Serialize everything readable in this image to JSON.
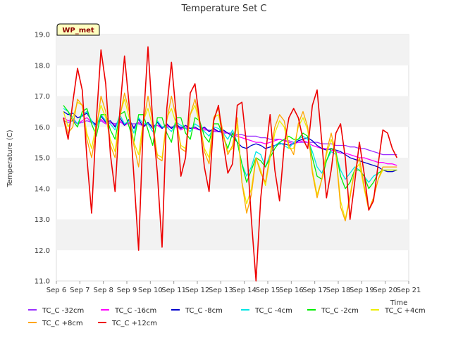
{
  "chart_data": {
    "type": "line",
    "title": "Temperature Set C",
    "xlabel": "Time",
    "ylabel": "Temperature (C)",
    "ylim": [
      11.0,
      19.0
    ],
    "xlim": [
      "Sep 6",
      "Sep 21"
    ],
    "x_ticks": [
      "Sep 6",
      "Sep 7",
      "Sep 8",
      "Sep 9",
      "Sep 10",
      "Sep 11",
      "Sep 12",
      "Sep 13",
      "Sep 14",
      "Sep 15",
      "Sep 16",
      "Sep 17",
      "Sep 18",
      "Sep 19",
      "Sep 20",
      "Sep 21"
    ],
    "y_ticks": [
      11.0,
      12.0,
      13.0,
      14.0,
      15.0,
      16.0,
      17.0,
      18.0,
      19.0
    ],
    "grid": "horizontal bands",
    "legend_placement": "bottom",
    "badge": "WP_met",
    "x_days": [
      0.3,
      0.5,
      0.7,
      0.9,
      1.1,
      1.3,
      1.5,
      1.7,
      1.9,
      2.1,
      2.3,
      2.5,
      2.7,
      2.9,
      3.1,
      3.3,
      3.5,
      3.7,
      3.9,
      4.1,
      4.3,
      4.5,
      4.7,
      4.9,
      5.1,
      5.3,
      5.5,
      5.7,
      5.9,
      6.1,
      6.3,
      6.5,
      6.7,
      6.9,
      7.1,
      7.3,
      7.5,
      7.7,
      7.9,
      8.1,
      8.3,
      8.5,
      8.7,
      8.9,
      9.1,
      9.3,
      9.5,
      9.7,
      9.9,
      10.1,
      10.3,
      10.5,
      10.7,
      10.9,
      11.1,
      11.3,
      11.5,
      11.7,
      11.9,
      12.1,
      12.3,
      12.5,
      12.7,
      12.9,
      13.1,
      13.3,
      13.5,
      13.7,
      13.9,
      14.1,
      14.3,
      14.5
    ],
    "series": [
      {
        "name": "TC_C -32cm",
        "color": "#9b30ff",
        "values": [
          16.2,
          16.15,
          16.2,
          16.1,
          16.15,
          16.2,
          16.15,
          16.1,
          16.2,
          16.1,
          16.15,
          16.1,
          16.15,
          16.1,
          16.1,
          16.1,
          16.1,
          16.05,
          16.1,
          16.05,
          16.05,
          16.0,
          16.0,
          16.0,
          16.0,
          16.0,
          15.95,
          15.95,
          15.95,
          15.9,
          15.9,
          15.9,
          15.85,
          15.85,
          15.8,
          15.8,
          15.8,
          15.75,
          15.75,
          15.7,
          15.7,
          15.7,
          15.65,
          15.65,
          15.6,
          15.6,
          15.6,
          15.55,
          15.55,
          15.5,
          15.5,
          15.5,
          15.5,
          15.5,
          15.5,
          15.45,
          15.45,
          15.45,
          15.4,
          15.4,
          15.4,
          15.35,
          15.35,
          15.3,
          15.3,
          15.25,
          15.2,
          15.15,
          15.1,
          15.1,
          15.1,
          15.1
        ]
      },
      {
        "name": "TC_C -16cm",
        "color": "#ff00ff",
        "values": [
          16.3,
          16.2,
          16.25,
          16.1,
          16.2,
          16.3,
          16.15,
          16.05,
          16.25,
          16.1,
          16.15,
          16.05,
          16.2,
          16.05,
          16.15,
          16.0,
          16.15,
          16.0,
          16.1,
          16.0,
          16.05,
          15.95,
          16.05,
          15.95,
          16.05,
          15.9,
          16.0,
          15.95,
          15.95,
          15.9,
          15.95,
          15.85,
          15.9,
          15.85,
          15.85,
          15.8,
          15.75,
          15.7,
          15.65,
          15.6,
          15.55,
          15.5,
          15.5,
          15.45,
          15.5,
          15.55,
          15.6,
          15.55,
          15.5,
          15.45,
          15.5,
          15.55,
          15.5,
          15.4,
          15.35,
          15.3,
          15.3,
          15.25,
          15.2,
          15.15,
          15.15,
          15.1,
          15.05,
          15.0,
          15.0,
          14.95,
          14.9,
          14.85,
          14.85,
          14.8,
          14.8,
          14.75
        ]
      },
      {
        "name": "TC_C -8cm",
        "color": "#0000cc",
        "values": [
          16.5,
          16.4,
          16.45,
          16.3,
          16.35,
          16.45,
          16.2,
          16.05,
          16.35,
          16.15,
          16.2,
          16.0,
          16.3,
          16.05,
          16.25,
          15.95,
          16.25,
          16.0,
          16.15,
          15.95,
          16.15,
          15.95,
          16.1,
          15.95,
          16.1,
          15.95,
          16.05,
          15.95,
          16.0,
          15.9,
          16.0,
          15.85,
          15.95,
          15.85,
          15.9,
          15.8,
          15.7,
          15.5,
          15.35,
          15.3,
          15.4,
          15.45,
          15.4,
          15.3,
          15.35,
          15.4,
          15.45,
          15.45,
          15.4,
          15.45,
          15.55,
          15.6,
          15.65,
          15.55,
          15.4,
          15.3,
          15.25,
          15.3,
          15.25,
          15.2,
          15.1,
          15.0,
          14.95,
          14.9,
          14.85,
          14.8,
          14.75,
          14.7,
          14.6,
          14.55,
          14.55,
          14.6
        ]
      },
      {
        "name": "TC_C -4cm",
        "color": "#00e5e5",
        "values": [
          16.6,
          16.5,
          16.3,
          16.1,
          16.4,
          16.5,
          16.2,
          15.95,
          16.4,
          16.2,
          16.1,
          15.9,
          16.4,
          16.1,
          16.2,
          15.8,
          16.3,
          16.1,
          16.1,
          15.85,
          16.2,
          16.0,
          16.0,
          15.85,
          16.15,
          16.05,
          15.95,
          15.85,
          16.1,
          16.0,
          15.85,
          15.7,
          16.0,
          15.95,
          15.8,
          15.6,
          15.9,
          15.5,
          14.8,
          14.4,
          14.7,
          15.2,
          15.1,
          14.7,
          15.1,
          15.4,
          15.5,
          15.4,
          15.3,
          15.5,
          15.6,
          15.7,
          15.6,
          15.2,
          14.7,
          14.5,
          14.9,
          15.2,
          15.1,
          14.6,
          14.3,
          14.5,
          14.7,
          14.6,
          14.4,
          14.2,
          14.4,
          14.5,
          14.6,
          14.6,
          14.6,
          14.6
        ]
      },
      {
        "name": "TC_C -2cm",
        "color": "#00ee00",
        "values": [
          16.7,
          16.5,
          16.2,
          16.0,
          16.5,
          16.6,
          16.1,
          15.7,
          16.4,
          16.4,
          15.9,
          15.6,
          16.4,
          16.5,
          16.0,
          15.5,
          16.4,
          16.4,
          15.9,
          15.4,
          16.3,
          16.3,
          15.8,
          15.5,
          16.3,
          16.3,
          15.8,
          15.6,
          16.3,
          16.2,
          15.7,
          15.5,
          16.1,
          16.1,
          15.7,
          15.3,
          15.8,
          15.5,
          14.8,
          14.2,
          14.6,
          15.0,
          14.9,
          14.7,
          15.0,
          15.3,
          15.5,
          15.6,
          15.7,
          15.6,
          15.6,
          15.8,
          15.7,
          15.0,
          14.4,
          14.3,
          14.9,
          15.3,
          15.2,
          14.4,
          14.0,
          14.2,
          14.6,
          14.6,
          14.4,
          14.0,
          14.2,
          14.5,
          14.6,
          14.6,
          14.6,
          14.6
        ]
      },
      {
        "name": "TC_C +4cm",
        "color": "#eeee00",
        "values": [
          16.5,
          16.0,
          16.3,
          16.8,
          16.7,
          15.8,
          15.3,
          16.1,
          16.7,
          16.3,
          15.6,
          15.2,
          16.4,
          16.9,
          16.3,
          15.5,
          15.1,
          16.2,
          16.6,
          16.0,
          15.1,
          15.0,
          16.3,
          16.6,
          16.1,
          15.4,
          15.3,
          16.4,
          16.7,
          16.1,
          15.3,
          15.0,
          16.3,
          16.4,
          15.7,
          15.2,
          15.3,
          16.1,
          14.2,
          13.5,
          14.0,
          15.0,
          14.6,
          14.1,
          15.0,
          15.8,
          16.2,
          16.0,
          15.3,
          15.3,
          16.0,
          16.3,
          15.9,
          14.6,
          13.8,
          14.3,
          15.1,
          15.6,
          15.1,
          13.6,
          13.0,
          13.8,
          14.6,
          14.8,
          14.0,
          13.3,
          13.7,
          14.3,
          14.6,
          14.6,
          14.6,
          14.6
        ]
      },
      {
        "name": "TC_C +8cm",
        "color": "#ffa500",
        "values": [
          16.3,
          15.8,
          16.0,
          16.9,
          16.7,
          15.6,
          15.0,
          15.9,
          17.0,
          16.5,
          15.4,
          15.0,
          16.3,
          17.1,
          16.5,
          15.4,
          14.7,
          16.1,
          17.0,
          16.2,
          15.0,
          14.9,
          16.2,
          17.0,
          16.3,
          15.3,
          15.2,
          16.4,
          16.9,
          16.2,
          15.2,
          14.8,
          16.3,
          16.6,
          15.8,
          15.1,
          15.4,
          16.3,
          14.2,
          13.2,
          13.8,
          15.0,
          14.5,
          14.2,
          15.1,
          16.0,
          16.4,
          16.2,
          15.4,
          15.1,
          16.1,
          16.5,
          16.0,
          14.5,
          13.7,
          14.3,
          15.2,
          15.8,
          15.1,
          13.4,
          12.95,
          13.7,
          14.6,
          15.0,
          14.1,
          13.3,
          13.7,
          14.3,
          14.7,
          14.7,
          14.7,
          14.7
        ]
      },
      {
        "name": "TC_C +12cm",
        "color": "#ee0000",
        "values": [
          16.3,
          15.6,
          16.8,
          17.9,
          17.2,
          15.0,
          13.2,
          16.2,
          18.5,
          17.4,
          15.1,
          13.9,
          16.5,
          18.3,
          16.7,
          14.4,
          12.0,
          16.1,
          18.6,
          16.2,
          14.5,
          12.1,
          16.6,
          18.1,
          16.4,
          14.4,
          15.0,
          17.1,
          17.4,
          16.2,
          14.7,
          13.9,
          16.2,
          16.7,
          15.5,
          14.5,
          14.8,
          16.7,
          16.8,
          15.4,
          13.0,
          11.0,
          13.7,
          15.1,
          16.4,
          14.6,
          13.6,
          15.4,
          16.3,
          16.6,
          16.3,
          15.6,
          15.3,
          16.7,
          17.2,
          15.5,
          13.7,
          14.6,
          15.8,
          16.1,
          15.0,
          13.0,
          14.2,
          15.5,
          14.5,
          13.3,
          13.6,
          14.8,
          15.9,
          15.8,
          15.3,
          15.0
        ]
      }
    ]
  }
}
